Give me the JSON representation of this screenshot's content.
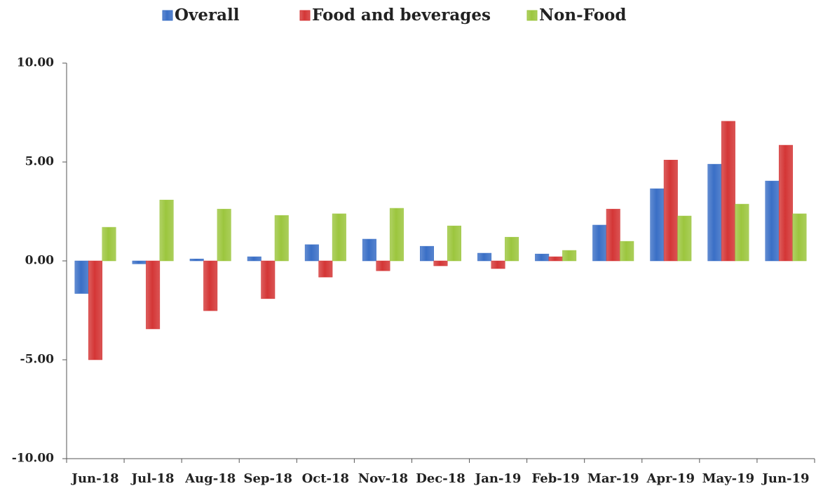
{
  "chart_data": {
    "type": "bar",
    "categories": [
      "Jun-18",
      "Jul-18",
      "Aug-18",
      "Sep-18",
      "Oct-18",
      "Nov-18",
      "Dec-18",
      "Jan-19",
      "Feb-19",
      "Mar-19",
      "Apr-19",
      "May-19",
      "Jun-19"
    ],
    "series": [
      {
        "name": "Overall",
        "color": "#3a6fc6",
        "values": [
          -1.65,
          -0.15,
          0.1,
          0.21,
          0.82,
          1.1,
          0.74,
          0.39,
          0.35,
          1.81,
          3.65,
          4.89,
          4.04
        ]
      },
      {
        "name": "Food and beverages",
        "color": "#d43636",
        "values": [
          -5.0,
          -3.44,
          -2.52,
          -1.91,
          -0.82,
          -0.5,
          -0.25,
          -0.39,
          0.21,
          2.62,
          5.1,
          7.06,
          5.85
        ]
      },
      {
        "name": "Non-Food",
        "color": "#9cc63e",
        "values": [
          1.7,
          3.08,
          2.62,
          2.3,
          2.38,
          2.66,
          1.77,
          1.2,
          0.53,
          0.99,
          2.27,
          2.87,
          2.38
        ]
      }
    ],
    "ylim": [
      -10,
      10
    ],
    "yticks": [
      {
        "value": -10,
        "label": "-10.00"
      },
      {
        "value": -5,
        "label": "-5.00"
      },
      {
        "value": 0,
        "label": "0.00"
      },
      {
        "value": 5,
        "label": "5.00"
      },
      {
        "value": 10,
        "label": "10.00"
      }
    ],
    "grid": false,
    "legend": "top"
  }
}
